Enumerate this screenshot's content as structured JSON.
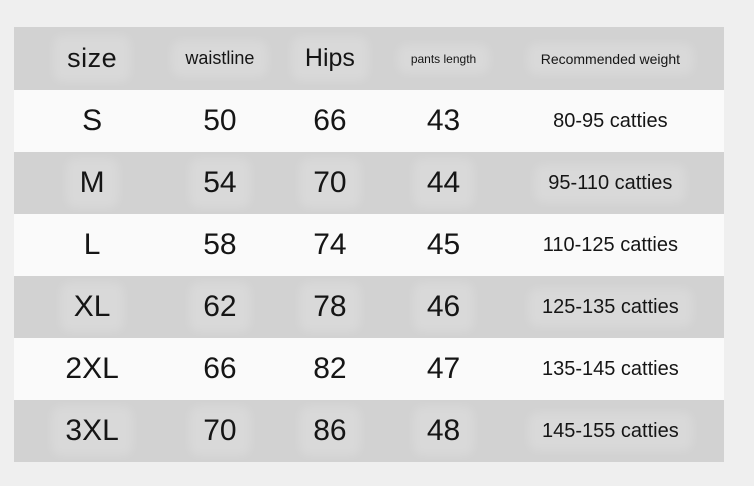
{
  "colors": {
    "page_bg": "#efefef",
    "header_bg": "#d2d2d2",
    "row_bg": "#fafafa",
    "row_alt_bg": "#d2d2d2",
    "text": "#151515"
  },
  "chart_data": {
    "type": "table",
    "columns": [
      "size",
      "waistline",
      "Hips",
      "pants length",
      "Recommended weight"
    ],
    "rows": [
      [
        "S",
        50,
        66,
        43,
        "80-95 catties"
      ],
      [
        "M",
        54,
        70,
        44,
        "95-110 catties"
      ],
      [
        "L",
        58,
        74,
        45,
        "110-125 catties"
      ],
      [
        "XL",
        62,
        78,
        46,
        "125-135 catties"
      ],
      [
        "2XL",
        66,
        82,
        47,
        "135-145 catties"
      ],
      [
        "3XL",
        70,
        86,
        48,
        "145-155 catties"
      ]
    ],
    "layout": {
      "header_background": "#d2d2d2",
      "row_alternation": [
        "#fafafa",
        "#d2d2d2"
      ],
      "grid": "off",
      "text_align": "center"
    }
  }
}
